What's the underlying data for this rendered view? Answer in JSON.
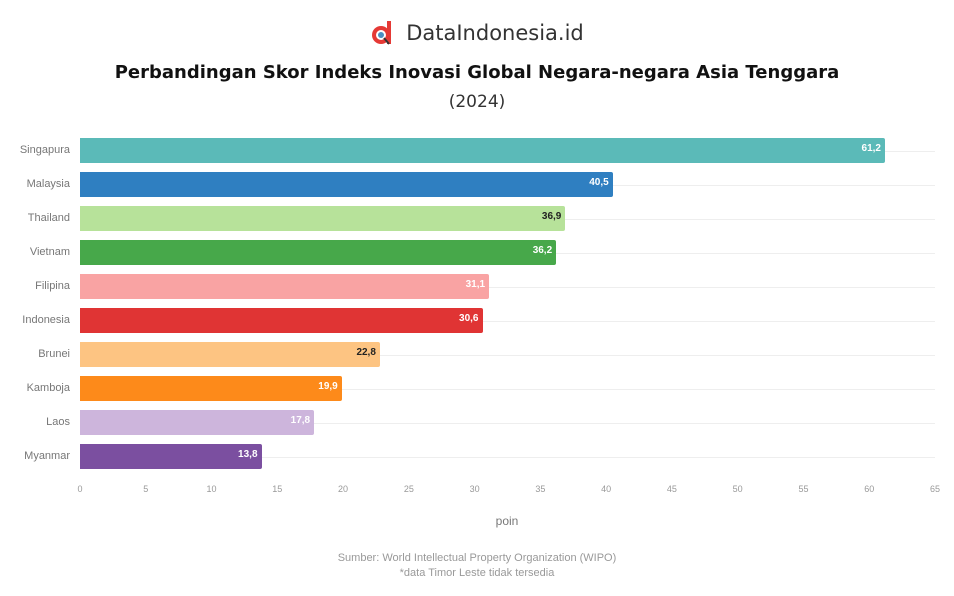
{
  "brand": {
    "name": "DataIndonesia.id",
    "logo_color": "#e53935"
  },
  "chart_data": {
    "type": "bar",
    "orientation": "horizontal",
    "title": "Perbandingan Skor Indeks Inovasi Global Negara-negara Asia Tenggara",
    "subtitle": "(2024)",
    "xlabel": "poin",
    "ylabel": "",
    "xlim": [
      0,
      65
    ],
    "xticks": [
      "0",
      "5",
      "10",
      "15",
      "20",
      "25",
      "30",
      "35",
      "40",
      "45",
      "50",
      "55",
      "60",
      "65"
    ],
    "grid": true,
    "legend": "none",
    "categories": [
      "Singapura",
      "Malaysia",
      "Thailand",
      "Vietnam",
      "Filipina",
      "Indonesia",
      "Brunei",
      "Kamboja",
      "Laos",
      "Myanmar"
    ],
    "values": [
      61.2,
      40.5,
      36.9,
      36.2,
      31.1,
      30.6,
      22.8,
      19.9,
      17.8,
      13.8
    ],
    "labels": [
      "61,2",
      "40,5",
      "36,9",
      "36,2",
      "31,1",
      "30,6",
      "22,8",
      "19,9",
      "17,8",
      "13,8"
    ],
    "colors": [
      "#5bbab8",
      "#2f7fc1",
      "#b7e29a",
      "#47a84a",
      "#f9a3a3",
      "#e03434",
      "#fdc482",
      "#fd8a1a",
      "#cdb5dc",
      "#7b4fa0"
    ],
    "label_colors": [
      "#fff",
      "#fff",
      "#222",
      "#fff",
      "#fff",
      "#fff",
      "#222",
      "#fff",
      "#fff",
      "#fff"
    ]
  },
  "footer": {
    "source": "Sumber: World Intellectual Property Organization (WIPO)",
    "note": "*data Timor Leste tidak tersedia"
  }
}
